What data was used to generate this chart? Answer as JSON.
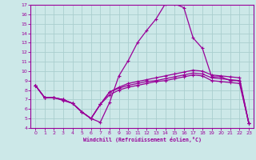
{
  "xlabel": "Windchill (Refroidissement éolien,°C)",
  "bg_color": "#cce8e8",
  "line_color": "#990099",
  "grid_color": "#aacece",
  "xlim": [
    -0.5,
    23.5
  ],
  "ylim": [
    4,
    17
  ],
  "xticks": [
    0,
    1,
    2,
    3,
    4,
    5,
    6,
    7,
    8,
    9,
    10,
    11,
    12,
    13,
    14,
    15,
    16,
    17,
    18,
    19,
    20,
    21,
    22,
    23
  ],
  "yticks": [
    4,
    5,
    6,
    7,
    8,
    9,
    10,
    11,
    12,
    13,
    14,
    15,
    16,
    17
  ],
  "curve1_x": [
    0,
    1,
    2,
    3,
    4,
    5,
    6,
    7,
    8,
    9,
    10,
    11,
    12,
    13,
    14,
    15,
    16,
    17,
    18,
    19,
    20,
    21,
    22,
    23
  ],
  "curve1_y": [
    8.5,
    7.2,
    7.2,
    6.9,
    6.6,
    5.7,
    5.0,
    4.6,
    6.7,
    9.5,
    11.1,
    13.0,
    14.3,
    15.5,
    17.1,
    17.1,
    16.7,
    13.5,
    12.4,
    9.4,
    9.4,
    9.0,
    9.0,
    4.5
  ],
  "curve2_x": [
    0,
    1,
    2,
    3,
    4,
    5,
    6,
    7,
    8,
    9,
    10,
    11,
    12,
    13,
    14,
    15,
    16,
    17,
    18,
    19,
    20,
    21,
    22,
    23
  ],
  "curve2_y": [
    8.5,
    7.2,
    7.2,
    7.0,
    6.6,
    5.7,
    5.0,
    6.5,
    7.5,
    8.0,
    8.3,
    8.5,
    8.7,
    8.9,
    9.0,
    9.2,
    9.4,
    9.6,
    9.5,
    9.0,
    8.9,
    8.8,
    8.7,
    4.5
  ],
  "curve3_x": [
    0,
    1,
    2,
    3,
    4,
    5,
    6,
    7,
    8,
    9,
    10,
    11,
    12,
    13,
    14,
    15,
    16,
    17,
    18,
    19,
    20,
    21,
    22,
    23
  ],
  "curve3_y": [
    8.5,
    7.2,
    7.2,
    7.0,
    6.6,
    5.7,
    5.0,
    6.5,
    7.8,
    8.2,
    8.5,
    8.7,
    8.9,
    9.0,
    9.2,
    9.4,
    9.6,
    9.8,
    9.7,
    9.3,
    9.2,
    9.1,
    9.0,
    4.5
  ],
  "curve4_x": [
    0,
    1,
    2,
    3,
    4,
    5,
    6,
    7,
    8,
    9,
    10,
    11,
    12,
    13,
    14,
    15,
    16,
    17,
    18,
    19,
    20,
    21,
    22,
    23
  ],
  "curve4_y": [
    8.5,
    7.2,
    7.2,
    7.0,
    6.6,
    5.7,
    5.0,
    6.5,
    7.8,
    8.3,
    8.7,
    8.9,
    9.1,
    9.3,
    9.5,
    9.7,
    9.9,
    10.1,
    10.0,
    9.6,
    9.5,
    9.4,
    9.3,
    4.5
  ]
}
